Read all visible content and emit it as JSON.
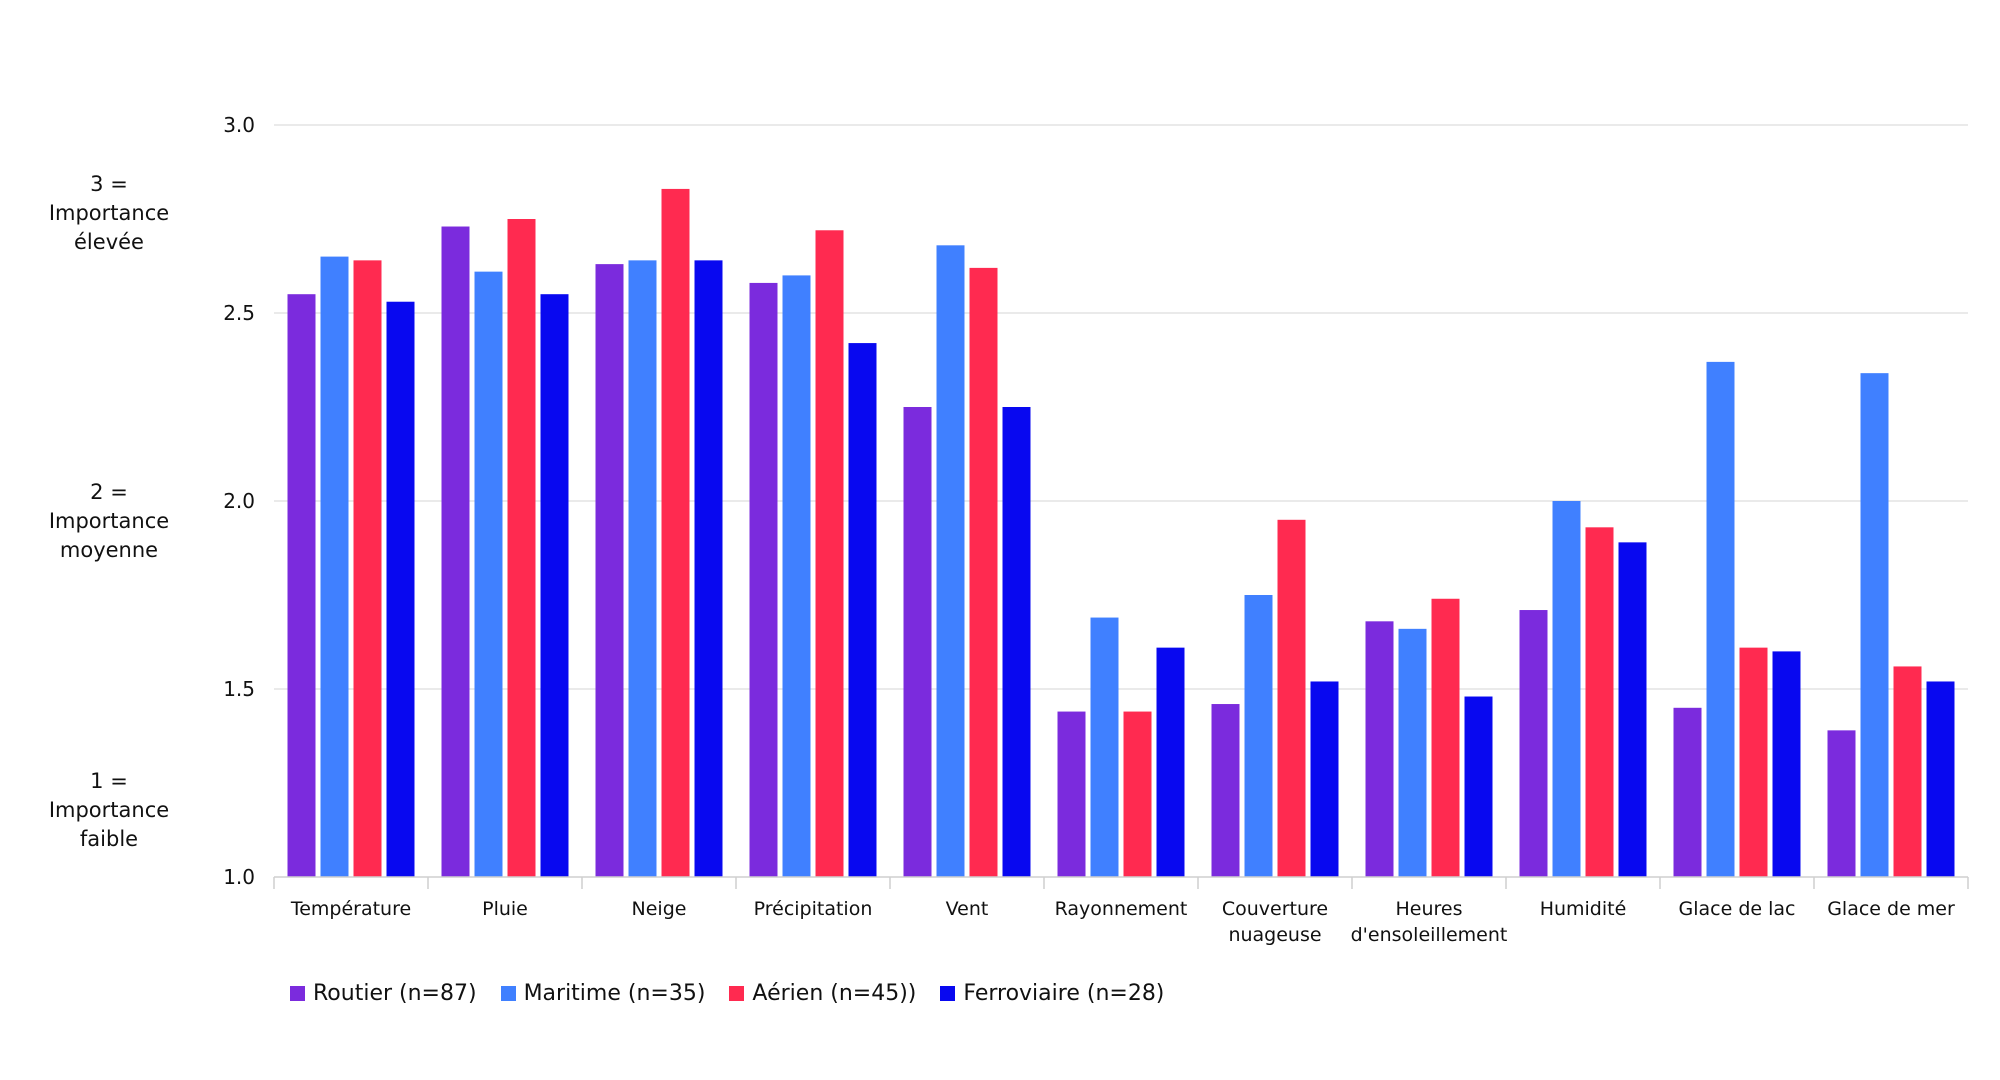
{
  "chart_data": {
    "type": "bar",
    "categories": [
      [
        "Température"
      ],
      [
        "Pluie"
      ],
      [
        "Neige"
      ],
      [
        "Précipitation"
      ],
      [
        "Vent"
      ],
      [
        "Rayonnement"
      ],
      [
        "Couverture",
        "nuageuse"
      ],
      [
        "Heures",
        "d'ensoleillement"
      ],
      [
        "Humidité"
      ],
      [
        "Glace de lac"
      ],
      [
        "Glace de mer"
      ]
    ],
    "series": [
      {
        "name": "Routier (n=87)",
        "color": "#7b2bdd",
        "values": [
          2.55,
          2.73,
          2.63,
          2.58,
          2.25,
          1.44,
          1.46,
          1.68,
          1.71,
          1.45,
          1.39
        ]
      },
      {
        "name": "Maritime (n=35)",
        "color": "#4080ff",
        "values": [
          2.65,
          2.61,
          2.64,
          2.6,
          2.68,
          1.69,
          1.75,
          1.66,
          2.0,
          2.37,
          2.34
        ]
      },
      {
        "name": "Aérien (n=45))",
        "color": "#ff2a50",
        "values": [
          2.64,
          2.75,
          2.83,
          2.72,
          2.62,
          1.44,
          1.95,
          1.74,
          1.93,
          1.61,
          1.56
        ]
      },
      {
        "name": "Ferroviaire (n=28)",
        "color": "#0808f0",
        "values": [
          2.53,
          2.55,
          2.64,
          2.42,
          2.25,
          1.61,
          1.52,
          1.48,
          1.89,
          1.6,
          1.52
        ]
      }
    ],
    "ylim": [
      1.0,
      3.0
    ],
    "yticks": [
      "1.0",
      "1.5",
      "2.0",
      "2.5",
      "3.0"
    ],
    "grid": true,
    "legend_position": "bottom-left"
  },
  "side_notes": [
    {
      "level": 3,
      "lines": [
        "3 =",
        "Importance",
        "élevée"
      ]
    },
    {
      "level": 2,
      "lines": [
        "2 =",
        "Importance",
        "moyenne"
      ]
    },
    {
      "level": 1,
      "lines": [
        "1 =",
        "Importance",
        "faible"
      ]
    }
  ]
}
